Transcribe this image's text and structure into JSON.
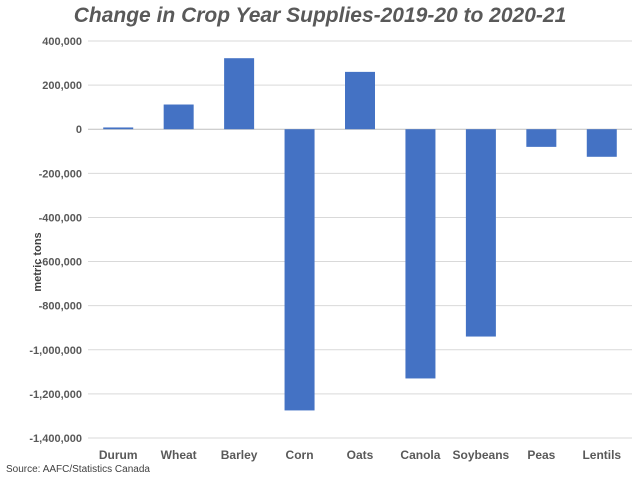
{
  "chart_data": {
    "type": "bar",
    "title": "Change in Crop Year Supplies-2019-20 to 2020-21",
    "xlabel": "",
    "ylabel": "metric tons",
    "categories": [
      "Durum",
      "Wheat",
      "Barley",
      "Corn",
      "Oats",
      "Canola",
      "Soybeans",
      "Peas",
      "Lentils"
    ],
    "values": [
      8000,
      112000,
      322000,
      -1275000,
      260000,
      -1130000,
      -940000,
      -80000,
      -125000
    ],
    "ylim": [
      -1400000,
      400000
    ],
    "yticks": [
      400000,
      200000,
      0,
      -200000,
      -400000,
      -600000,
      -800000,
      -1000000,
      -1200000,
      -1400000
    ],
    "ytick_labels": [
      "400,000",
      "200,000",
      "0",
      "-200,000",
      "-400,000",
      "-600,000",
      "-800,000",
      "-1,000,000",
      "-1,200,000",
      "-1,400,000"
    ],
    "grid": true,
    "legend": "none",
    "bar_color": "#4472C4",
    "grid_color": "#D9D9D9",
    "source": "Source: AAFC/Statistics Canada"
  }
}
